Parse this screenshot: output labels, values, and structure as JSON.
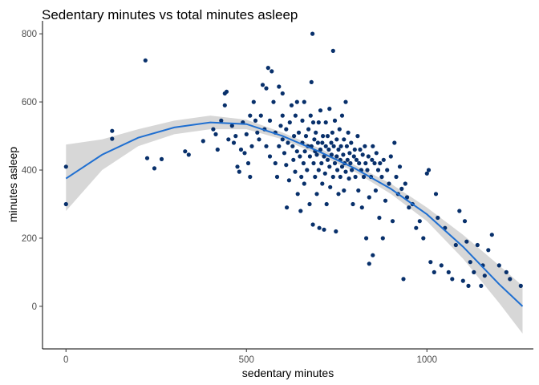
{
  "chart_data": {
    "type": "scatter",
    "title": "Sedentary minutes vs total minutes asleep",
    "xlabel": "sedentary minutes",
    "ylabel": "minutes asleep",
    "xlim": [
      -65,
      1295
    ],
    "ylim": [
      -125,
      838
    ],
    "x_ticks": [
      0,
      500,
      1000
    ],
    "x_tick_labels": [
      "0",
      "500",
      "1000"
    ],
    "y_ticks": [
      0,
      200,
      400,
      600,
      800
    ],
    "y_tick_labels": [
      "0",
      "200",
      "400",
      "600",
      "800"
    ],
    "grid": false,
    "legend": "none",
    "point_color": "#08306b",
    "smooth_color": "#1f6fd1",
    "ribbon_color": "#d3d3d3",
    "smooth": {
      "method": "loess",
      "points": [
        [
          0,
          375
        ],
        [
          100,
          445
        ],
        [
          200,
          495
        ],
        [
          300,
          525
        ],
        [
          400,
          540
        ],
        [
          500,
          535
        ],
        [
          600,
          500
        ],
        [
          700,
          455
        ],
        [
          800,
          405
        ],
        [
          900,
          345
        ],
        [
          1000,
          270
        ],
        [
          1100,
          175
        ],
        [
          1200,
          65
        ],
        [
          1265,
          0
        ]
      ],
      "ci_upper": [
        [
          0,
          475
        ],
        [
          100,
          490
        ],
        [
          200,
          520
        ],
        [
          300,
          545
        ],
        [
          400,
          560
        ],
        [
          500,
          548
        ],
        [
          600,
          510
        ],
        [
          700,
          465
        ],
        [
          800,
          415
        ],
        [
          900,
          360
        ],
        [
          1000,
          290
        ],
        [
          1100,
          210
        ],
        [
          1200,
          120
        ],
        [
          1265,
          60
        ]
      ],
      "ci_lower": [
        [
          0,
          280
        ],
        [
          100,
          400
        ],
        [
          200,
          470
        ],
        [
          300,
          505
        ],
        [
          400,
          520
        ],
        [
          500,
          520
        ],
        [
          600,
          490
        ],
        [
          700,
          445
        ],
        [
          800,
          395
        ],
        [
          900,
          330
        ],
        [
          1000,
          250
        ],
        [
          1100,
          140
        ],
        [
          1200,
          10
        ],
        [
          1265,
          -80
        ]
      ]
    },
    "points": [
      [
        0,
        300
      ],
      [
        0,
        410
      ],
      [
        128,
        515
      ],
      [
        128,
        492
      ],
      [
        220,
        722
      ],
      [
        225,
        435
      ],
      [
        245,
        405
      ],
      [
        265,
        432
      ],
      [
        330,
        455
      ],
      [
        340,
        445
      ],
      [
        380,
        485
      ],
      [
        408,
        520
      ],
      [
        415,
        505
      ],
      [
        420,
        460
      ],
      [
        430,
        545
      ],
      [
        440,
        590
      ],
      [
        440,
        625
      ],
      [
        445,
        630
      ],
      [
        450,
        490
      ],
      [
        460,
        530
      ],
      [
        465,
        480
      ],
      [
        470,
        500
      ],
      [
        475,
        410
      ],
      [
        480,
        395
      ],
      [
        485,
        460
      ],
      [
        490,
        540
      ],
      [
        495,
        450
      ],
      [
        500,
        505
      ],
      [
        505,
        420
      ],
      [
        510,
        380
      ],
      [
        510,
        560
      ],
      [
        515,
        470
      ],
      [
        520,
        600
      ],
      [
        525,
        545
      ],
      [
        530,
        510
      ],
      [
        535,
        490
      ],
      [
        540,
        560
      ],
      [
        545,
        650
      ],
      [
        550,
        520
      ],
      [
        555,
        470
      ],
      [
        555,
        640
      ],
      [
        560,
        700
      ],
      [
        565,
        545
      ],
      [
        565,
        440
      ],
      [
        570,
        690
      ],
      [
        575,
        600
      ],
      [
        580,
        510
      ],
      [
        580,
        420
      ],
      [
        585,
        380
      ],
      [
        590,
        470
      ],
      [
        590,
        645
      ],
      [
        595,
        530
      ],
      [
        600,
        490
      ],
      [
        600,
        560
      ],
      [
        600,
        625
      ],
      [
        605,
        450
      ],
      [
        610,
        415
      ],
      [
        610,
        520
      ],
      [
        612,
        290
      ],
      [
        615,
        480
      ],
      [
        618,
        370
      ],
      [
        620,
        540
      ],
      [
        625,
        590
      ],
      [
        628,
        470
      ],
      [
        630,
        430
      ],
      [
        632,
        500
      ],
      [
        635,
        395
      ],
      [
        636,
        560
      ],
      [
        640,
        600
      ],
      [
        640,
        455
      ],
      [
        642,
        330
      ],
      [
        645,
        510
      ],
      [
        648,
        440
      ],
      [
        650,
        280
      ],
      [
        652,
        380
      ],
      [
        655,
        480
      ],
      [
        655,
        545
      ],
      [
        658,
        420
      ],
      [
        660,
        600
      ],
      [
        660,
        360
      ],
      [
        662,
        455
      ],
      [
        665,
        500
      ],
      [
        668,
        400
      ],
      [
        670,
        470
      ],
      [
        672,
        520
      ],
      [
        675,
        300
      ],
      [
        676,
        440
      ],
      [
        678,
        560
      ],
      [
        680,
        470
      ],
      [
        680,
        658
      ],
      [
        683,
        800
      ],
      [
        684,
        240
      ],
      [
        685,
        540
      ],
      [
        686,
        420
      ],
      [
        688,
        490
      ],
      [
        690,
        380
      ],
      [
        690,
        455
      ],
      [
        692,
        510
      ],
      [
        695,
        330
      ],
      [
        695,
        445
      ],
      [
        698,
        480
      ],
      [
        700,
        400
      ],
      [
        700,
        540
      ],
      [
        702,
        230
      ],
      [
        705,
        460
      ],
      [
        705,
        575
      ],
      [
        708,
        420
      ],
      [
        710,
        480
      ],
      [
        710,
        360
      ],
      [
        712,
        500
      ],
      [
        715,
        440
      ],
      [
        715,
        225
      ],
      [
        718,
        390
      ],
      [
        720,
        470
      ],
      [
        720,
        540
      ],
      [
        722,
        300
      ],
      [
        725,
        430
      ],
      [
        725,
        500
      ],
      [
        728,
        460
      ],
      [
        730,
        410
      ],
      [
        730,
        580
      ],
      [
        732,
        350
      ],
      [
        735,
        480
      ],
      [
        736,
        445
      ],
      [
        738,
        510
      ],
      [
        740,
        380
      ],
      [
        740,
        750
      ],
      [
        742,
        470
      ],
      [
        745,
        420
      ],
      [
        745,
        545
      ],
      [
        748,
        220
      ],
      [
        750,
        440
      ],
      [
        750,
        490
      ],
      [
        752,
        400
      ],
      [
        755,
        460
      ],
      [
        755,
        330
      ],
      [
        758,
        520
      ],
      [
        760,
        430
      ],
      [
        760,
        380
      ],
      [
        762,
        470
      ],
      [
        765,
        410
      ],
      [
        765,
        560
      ],
      [
        768,
        445
      ],
      [
        770,
        490
      ],
      [
        770,
        340
      ],
      [
        772,
        420
      ],
      [
        775,
        395
      ],
      [
        775,
        600
      ],
      [
        778,
        470
      ],
      [
        780,
        430
      ],
      [
        782,
        510
      ],
      [
        784,
        375
      ],
      [
        786,
        450
      ],
      [
        788,
        420
      ],
      [
        790,
        480
      ],
      [
        792,
        400
      ],
      [
        795,
        300
      ],
      [
        798,
        440
      ],
      [
        800,
        460
      ],
      [
        802,
        380
      ],
      [
        805,
        430
      ],
      [
        808,
        500
      ],
      [
        810,
        340
      ],
      [
        812,
        420
      ],
      [
        815,
        460
      ],
      [
        818,
        400
      ],
      [
        820,
        290
      ],
      [
        822,
        445
      ],
      [
        825,
        380
      ],
      [
        828,
        470
      ],
      [
        830,
        420
      ],
      [
        832,
        200
      ],
      [
        835,
        400
      ],
      [
        838,
        440
      ],
      [
        840,
        320
      ],
      [
        840,
        125
      ],
      [
        845,
        380
      ],
      [
        848,
        430
      ],
      [
        850,
        150
      ],
      [
        850,
        470
      ],
      [
        855,
        420
      ],
      [
        858,
        340
      ],
      [
        860,
        450
      ],
      [
        865,
        400
      ],
      [
        868,
        260
      ],
      [
        870,
        420
      ],
      [
        875,
        380
      ],
      [
        878,
        200
      ],
      [
        880,
        430
      ],
      [
        885,
        310
      ],
      [
        890,
        400
      ],
      [
        895,
        360
      ],
      [
        900,
        440
      ],
      [
        905,
        250
      ],
      [
        910,
        480
      ],
      [
        915,
        380
      ],
      [
        920,
        330
      ],
      [
        925,
        410
      ],
      [
        930,
        345
      ],
      [
        935,
        80
      ],
      [
        940,
        360
      ],
      [
        945,
        320
      ],
      [
        950,
        290
      ],
      [
        960,
        300
      ],
      [
        970,
        230
      ],
      [
        980,
        250
      ],
      [
        990,
        200
      ],
      [
        1000,
        390
      ],
      [
        1005,
        400
      ],
      [
        1010,
        130
      ],
      [
        1020,
        100
      ],
      [
        1025,
        330
      ],
      [
        1030,
        260
      ],
      [
        1040,
        120
      ],
      [
        1050,
        230
      ],
      [
        1060,
        100
      ],
      [
        1070,
        80
      ],
      [
        1080,
        180
      ],
      [
        1090,
        280
      ],
      [
        1100,
        75
      ],
      [
        1105,
        250
      ],
      [
        1110,
        190
      ],
      [
        1115,
        60
      ],
      [
        1120,
        130
      ],
      [
        1130,
        100
      ],
      [
        1140,
        180
      ],
      [
        1150,
        60
      ],
      [
        1155,
        120
      ],
      [
        1160,
        90
      ],
      [
        1170,
        165
      ],
      [
        1180,
        210
      ],
      [
        1200,
        120
      ],
      [
        1220,
        100
      ],
      [
        1230,
        80
      ],
      [
        1260,
        60
      ]
    ]
  }
}
